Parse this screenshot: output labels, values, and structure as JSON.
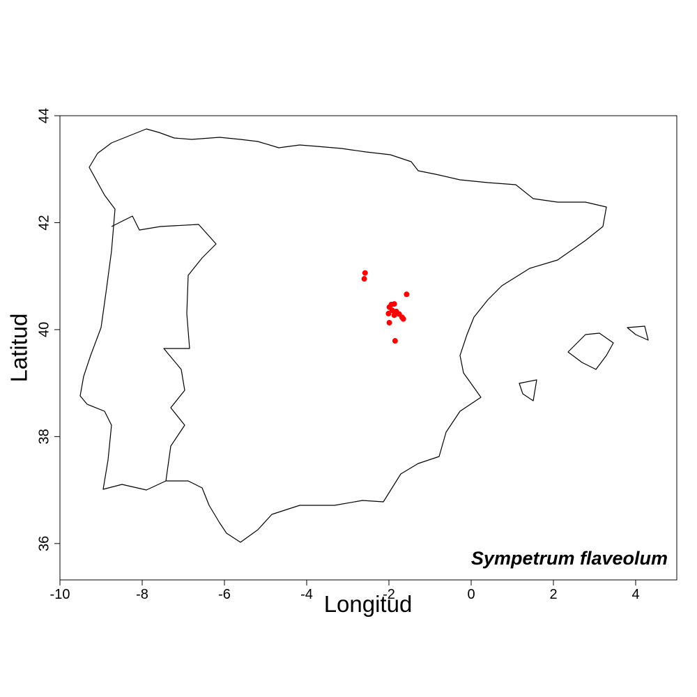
{
  "chart_data": {
    "type": "scatter",
    "annotation": "Sympetrum flaveolum",
    "x_label": "Longitud",
    "y_label": "Latitud",
    "x": [
      -2.58,
      -2.6,
      -1.57,
      -1.94,
      -1.87,
      -1.99,
      -1.92,
      -1.82,
      -2.01,
      -1.75,
      -1.68,
      -1.65,
      -1.87,
      -1.99,
      -1.85
    ],
    "series": [
      {
        "color": "#ff0000",
        "values": [
          41.06,
          40.95,
          40.66,
          40.47,
          40.48,
          40.42,
          40.36,
          40.34,
          40.3,
          40.29,
          40.23,
          40.2,
          40.27,
          40.13,
          39.79
        ]
      }
    ],
    "xlim": [
      -10,
      5
    ],
    "ylim": [
      35.32,
      44
    ],
    "xticks": [
      -10,
      -8,
      -6,
      -4,
      -2,
      0,
      2,
      4
    ],
    "yticks": [
      36,
      38,
      40,
      42,
      44
    ]
  }
}
